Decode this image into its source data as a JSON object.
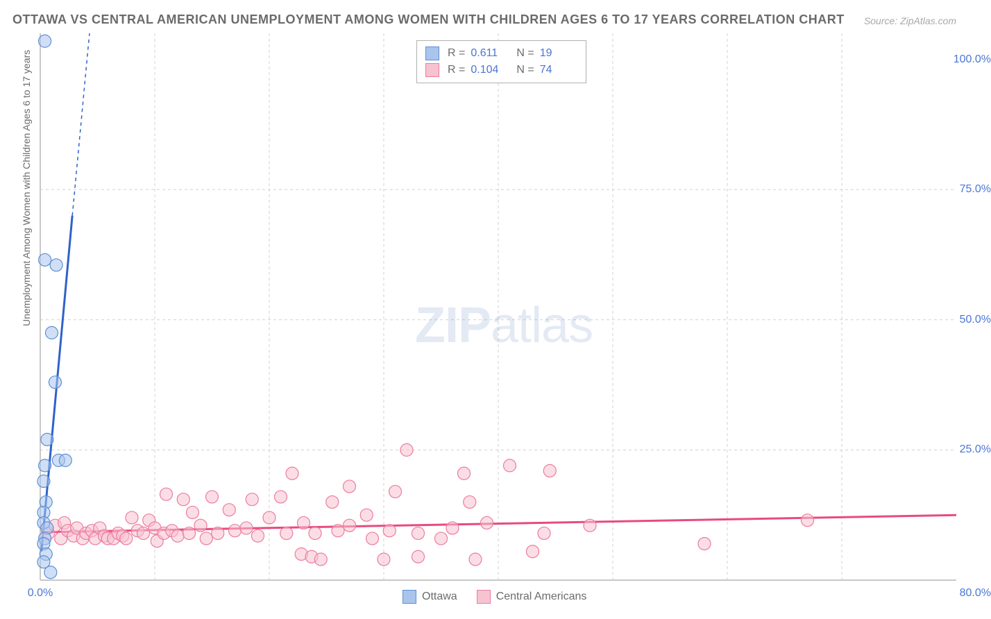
{
  "title": "OTTAWA VS CENTRAL AMERICAN UNEMPLOYMENT AMONG WOMEN WITH CHILDREN AGES 6 TO 17 YEARS CORRELATION CHART",
  "source": "Source: ZipAtlas.com",
  "ylabel": "Unemployment Among Women with Children Ages 6 to 17 years",
  "watermark": {
    "prefix": "ZIP",
    "suffix": "atlas"
  },
  "chart": {
    "type": "scatter",
    "background_color": "#ffffff",
    "grid_color": "#d0d0d0",
    "axis_color": "#c8c8c8",
    "tick_color": "#4a76d4",
    "tick_fontsize": 16,
    "title_fontsize": 18,
    "title_color": "#6b6b6b",
    "label_fontsize": 14,
    "xlim": [
      0,
      80
    ],
    "ylim": [
      0,
      105
    ],
    "xticks": [
      0,
      80
    ],
    "xtick_labels": [
      "0.0%",
      "80.0%"
    ],
    "yticks": [
      25,
      50,
      75,
      100
    ],
    "ytick_labels": [
      "25.0%",
      "50.0%",
      "75.0%",
      "100.0%"
    ],
    "x_gridlines": [
      10,
      20,
      30,
      40,
      50,
      60,
      70
    ],
    "y_gridlines": [
      25,
      50,
      75
    ],
    "marker_radius": 9,
    "marker_opacity": 0.55,
    "line_width_solid": 3,
    "line_width_dash": 1.5,
    "dash_pattern": "5,5",
    "series": {
      "ottawa": {
        "label": "Ottawa",
        "color_fill": "#a9c5ec",
        "color_stroke": "#5b8fd6",
        "trend_color": "#2e62c9",
        "R": "0.611",
        "N": "19",
        "points": [
          [
            0.4,
            103.5
          ],
          [
            0.4,
            61.5
          ],
          [
            1.4,
            60.5
          ],
          [
            1.0,
            47.5
          ],
          [
            1.3,
            38.0
          ],
          [
            0.6,
            27.0
          ],
          [
            1.6,
            23.0
          ],
          [
            2.2,
            23.0
          ],
          [
            0.4,
            22.0
          ],
          [
            0.3,
            19.0
          ],
          [
            0.5,
            15.0
          ],
          [
            0.3,
            13.0
          ],
          [
            0.3,
            11.0
          ],
          [
            0.6,
            10.0
          ],
          [
            0.4,
            8.0
          ],
          [
            0.3,
            7.0
          ],
          [
            0.5,
            5.0
          ],
          [
            0.3,
            3.5
          ],
          [
            0.9,
            1.5
          ]
        ],
        "trend_solid": [
          [
            0.1,
            5.5
          ],
          [
            2.8,
            70.0
          ]
        ],
        "trend_dash": [
          [
            2.8,
            70.0
          ],
          [
            4.3,
            105.0
          ]
        ]
      },
      "central": {
        "label": "Central Americans",
        "color_fill": "#f7c3d0",
        "color_stroke": "#ec7ba0",
        "trend_color": "#e84a7f",
        "R": "0.104",
        "N": "74",
        "points": [
          [
            0.7,
            9.0
          ],
          [
            1.3,
            10.5
          ],
          [
            1.8,
            8.0
          ],
          [
            2.1,
            11.0
          ],
          [
            2.4,
            9.5
          ],
          [
            2.9,
            8.5
          ],
          [
            3.2,
            10.0
          ],
          [
            3.7,
            8.0
          ],
          [
            4.0,
            9.0
          ],
          [
            4.5,
            9.5
          ],
          [
            4.8,
            8.0
          ],
          [
            5.2,
            10.0
          ],
          [
            5.6,
            8.5
          ],
          [
            5.9,
            8.0
          ],
          [
            6.4,
            8.0
          ],
          [
            6.8,
            9.0
          ],
          [
            7.2,
            8.5
          ],
          [
            7.5,
            8.0
          ],
          [
            8.0,
            12.0
          ],
          [
            8.5,
            9.5
          ],
          [
            9.0,
            9.0
          ],
          [
            9.5,
            11.5
          ],
          [
            10.0,
            10.0
          ],
          [
            10.2,
            7.5
          ],
          [
            10.8,
            9.0
          ],
          [
            11.0,
            16.5
          ],
          [
            11.5,
            9.5
          ],
          [
            12.0,
            8.5
          ],
          [
            12.5,
            15.5
          ],
          [
            13.0,
            9.0
          ],
          [
            13.3,
            13.0
          ],
          [
            14.0,
            10.5
          ],
          [
            14.5,
            8.0
          ],
          [
            15.0,
            16.0
          ],
          [
            15.5,
            9.0
          ],
          [
            16.5,
            13.5
          ],
          [
            17.0,
            9.5
          ],
          [
            18.0,
            10.0
          ],
          [
            18.5,
            15.5
          ],
          [
            19.0,
            8.5
          ],
          [
            20.0,
            12.0
          ],
          [
            21.0,
            16.0
          ],
          [
            21.5,
            9.0
          ],
          [
            22.0,
            20.5
          ],
          [
            22.8,
            5.0
          ],
          [
            23.0,
            11.0
          ],
          [
            23.7,
            4.5
          ],
          [
            24.0,
            9.0
          ],
          [
            24.5,
            4.0
          ],
          [
            25.5,
            15.0
          ],
          [
            26.0,
            9.5
          ],
          [
            27.0,
            10.5
          ],
          [
            27.0,
            18.0
          ],
          [
            28.5,
            12.5
          ],
          [
            29.0,
            8.0
          ],
          [
            30.0,
            4.0
          ],
          [
            30.5,
            9.5
          ],
          [
            31.0,
            17.0
          ],
          [
            32.0,
            25.0
          ],
          [
            33.0,
            9.0
          ],
          [
            33.0,
            4.5
          ],
          [
            35.0,
            8.0
          ],
          [
            36.0,
            10.0
          ],
          [
            37.0,
            20.5
          ],
          [
            37.5,
            15.0
          ],
          [
            38.0,
            4.0
          ],
          [
            39.0,
            11.0
          ],
          [
            41.0,
            22.0
          ],
          [
            43.0,
            5.5
          ],
          [
            44.0,
            9.0
          ],
          [
            44.5,
            21.0
          ],
          [
            48.0,
            10.5
          ],
          [
            58.0,
            7.0
          ],
          [
            67.0,
            11.5
          ]
        ],
        "trend_solid": [
          [
            0.1,
            9.2
          ],
          [
            80.0,
            12.5
          ]
        ]
      }
    }
  },
  "legend_top": {
    "R_label": "R  =",
    "N_label": "N  ="
  },
  "colors": {
    "text_muted": "#6b6b6b",
    "source_color": "#a8a8a8"
  }
}
